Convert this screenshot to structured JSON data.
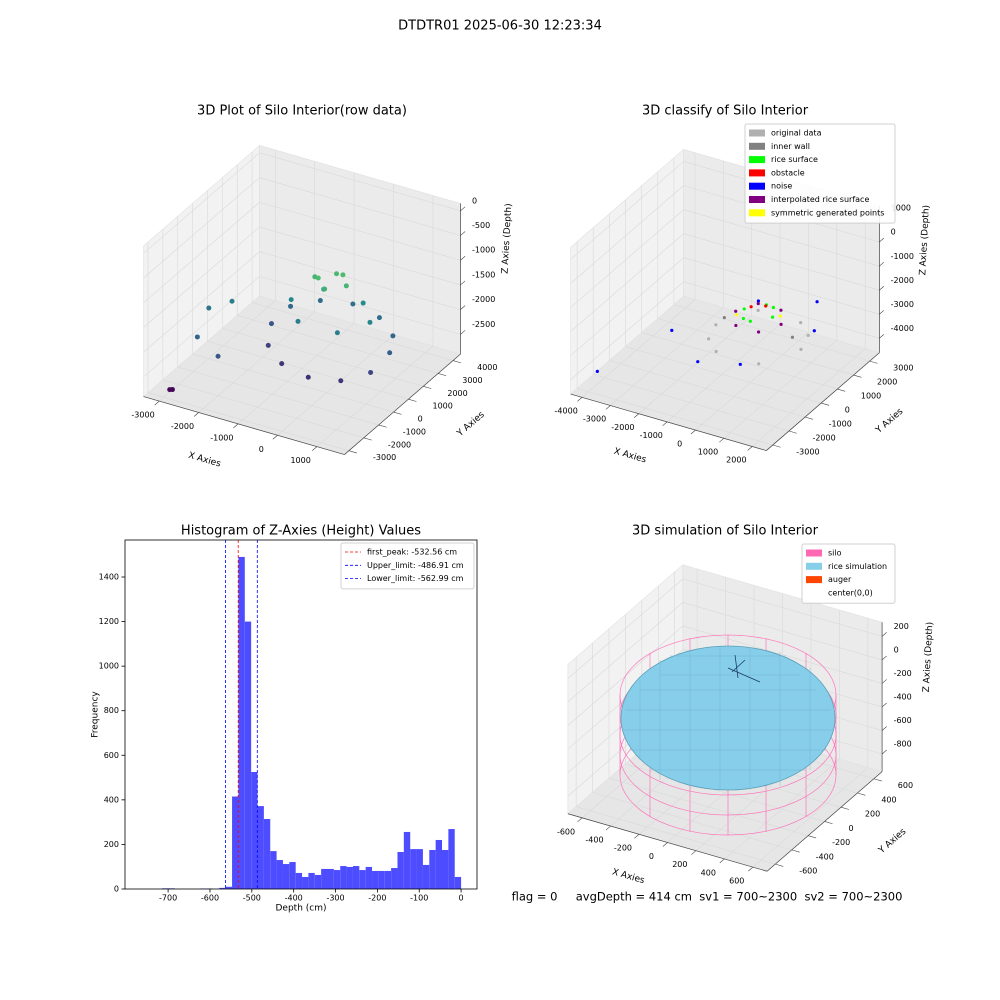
{
  "title": "DTDTR01 2025-06-30 12:23:34",
  "footer": "flag = 0     avgDepth = 414 cm  sv1 = 700~2300  sv2 = 700~2300",
  "chart_data": [
    {
      "type": "scatter3d",
      "title": "3D Plot of Silo Interior(row data)",
      "xlabel": "X Axies",
      "ylabel": "Y Axies",
      "zlabel": "Z Axies (Depth)",
      "xlim": [
        -3400,
        1700
      ],
      "ylim": [
        -3300,
        4500
      ],
      "zlim": [
        -2900,
        150
      ],
      "xticks": [
        -3000,
        -2000,
        -1000,
        0,
        1000
      ],
      "yticks": [
        -3000,
        -2000,
        -1000,
        0,
        1000,
        2000,
        3000,
        4000
      ],
      "zticks": [
        0,
        -500,
        -1000,
        -1500,
        -2000,
        -2500
      ],
      "colormap": "viridis",
      "grid": true,
      "series": [
        {
          "x": [
            -3000,
            -2950,
            -2800,
            -2600,
            -2000,
            -2400,
            1300,
            1099,
            550,
            -200,
            -950,
            -1499,
            -1700,
            -1499,
            -950,
            -200,
            550,
            1099,
            800,
            300,
            -700,
            -1200,
            -700,
            300,
            200,
            -200,
            -600,
            -200,
            0,
            -400
          ],
          "y": [
            -2600,
            -2550,
            -500,
            -1800,
            -2000,
            0,
            800,
            1550,
            2099,
            2300,
            2099,
            1550,
            800,
            50,
            -499,
            -700,
            -499,
            50,
            800,
            1666,
            1666,
            800,
            -66,
            -66,
            800,
            1200,
            800,
            400,
            1100,
            500
          ],
          "z": [
            -2850,
            -2850,
            -1700,
            -1900,
            -2100,
            -1600,
            -2000,
            -1900,
            -1800,
            -1750,
            -1800,
            -1900,
            -2100,
            -2300,
            -2400,
            -2450,
            -2400,
            -2250,
            -1500,
            -1450,
            -1400,
            -1500,
            -1600,
            -1600,
            -900,
            -850,
            -900,
            -950,
            -800,
            -800
          ]
        }
      ]
    },
    {
      "type": "scatter3d",
      "title": "3D classify of Silo Interior",
      "xlabel": "X Axies",
      "ylabel": "Y Axies",
      "zlabel": "Z Axies (Depth)",
      "xlim": [
        -4400,
        2500
      ],
      "ylim": [
        -3400,
        3600
      ],
      "zlim": [
        -4600,
        1500
      ],
      "xticks": [
        -4000,
        -3000,
        -2000,
        -1000,
        0,
        1000,
        2000
      ],
      "yticks": [
        -3000,
        -2000,
        -1000,
        0,
        1000,
        2000,
        3000
      ],
      "zticks": [
        1000,
        0,
        -1000,
        -2000,
        -3000,
        -4000
      ],
      "grid": true,
      "legend": "upper right",
      "series": [
        {
          "name": "original data",
          "color": "#b0b0b0",
          "x": [
            1500,
            750,
            -750,
            -1500,
            -750,
            750,
            1300,
            -1300
          ],
          "y": [
            500,
            1800,
            1800,
            500,
            -800,
            -800,
            1300,
            -300
          ],
          "z": [
            -3000,
            -2900,
            -2900,
            -3000,
            -3100,
            -3100,
            -2950,
            -3050
          ]
        },
        {
          "name": "inner wall",
          "color": "#808080",
          "x": [
            1200,
            -1200
          ],
          "y": [
            500,
            500
          ],
          "z": [
            -2600,
            -2600
          ]
        },
        {
          "name": "rice surface",
          "color": "#00ff00",
          "x": [
            500,
            0,
            -500,
            0,
            300,
            -300
          ],
          "y": [
            500,
            1000,
            500,
            0,
            900,
            100
          ],
          "z": [
            -2000,
            -1950,
            -2000,
            -2050,
            -1900,
            -2100
          ]
        },
        {
          "name": "obstacle",
          "color": "#ff0000",
          "x": [
            200,
            -200
          ],
          "y": [
            600,
            400
          ],
          "z": [
            -1700,
            -1750
          ]
        },
        {
          "name": "noise",
          "color": "#0000ff",
          "x": [
            -3800,
            -2200,
            1500,
            -1000,
            500,
            1800,
            0
          ],
          "y": [
            -2800,
            -1000,
            1500,
            -1500,
            -1500,
            800,
            500
          ],
          "z": [
            -3800,
            -2600,
            -1600,
            -3200,
            -2800,
            -2300,
            -1500
          ]
        },
        {
          "name": "interpolated rice surface",
          "color": "#800080",
          "x": [
            800,
            400,
            -400,
            -800,
            -400,
            400
          ],
          "y": [
            500,
            1193,
            1193,
            500,
            -193,
            -193
          ],
          "z": [
            -2200,
            -2150,
            -2150,
            -2200,
            -2250,
            -2250
          ]
        },
        {
          "name": "symmetric generated points",
          "color": "#ffff00",
          "x": [
            600,
            -600
          ],
          "y": [
            800,
            200
          ],
          "z": [
            -2100,
            -2100
          ]
        }
      ]
    },
    {
      "type": "histogram",
      "title": "Histogram of Z-Axies (Height) Values",
      "xlabel": "Depth (cm)",
      "ylabel": "Frequency",
      "color": "#4d4dff",
      "xlim": [
        -803,
        38
      ],
      "ylim": [
        0,
        1566
      ],
      "xticks": [
        -700,
        -600,
        -500,
        -400,
        -300,
        -200,
        -100,
        0
      ],
      "yticks": [
        0,
        200,
        400,
        600,
        800,
        1000,
        1200,
        1400
      ],
      "bins": [
        -760,
        -744.8,
        -729.6,
        -714.4,
        -699.2,
        -684,
        -668.8,
        -653.6,
        -638.4,
        -623.2,
        -608,
        -592.8,
        -577.6,
        -562.4,
        -547.2,
        -532,
        -516.8,
        -501.6,
        -486.4,
        -471.2,
        -456,
        -440.8,
        -425.6,
        -410.4,
        -395.2,
        -380,
        -364.8,
        -349.6,
        -334.4,
        -319.2,
        -304,
        -288.8,
        -273.6,
        -258.4,
        -243.2,
        -228,
        -212.8,
        -197.6,
        -182.4,
        -167.2,
        -152,
        -136.8,
        -121.6,
        -106.4,
        -91.2,
        -76,
        -60.8,
        -45.6,
        -30.4,
        -15.2,
        0
      ],
      "counts": [
        0,
        0,
        0,
        3,
        3,
        0,
        0,
        0,
        0,
        2,
        2,
        0,
        5,
        10,
        415,
        1490,
        1200,
        525,
        372,
        314,
        170,
        130,
        112,
        121,
        72,
        54,
        72,
        63,
        90,
        90,
        85,
        103,
        99,
        103,
        85,
        99,
        81,
        81,
        81,
        94,
        166,
        256,
        179,
        179,
        108,
        175,
        220,
        175,
        269,
        54
      ],
      "legend": "upper right",
      "lines": [
        {
          "label": "first_peak: -532.56 cm",
          "value": -532.56,
          "color": "#ff0000"
        },
        {
          "label": "Upper_limit: -486.91 cm",
          "value": -486.91,
          "color": "#0000ff"
        },
        {
          "label": "Lower_limit: -562.99 cm",
          "value": -562.99,
          "color": "#0000ff"
        }
      ]
    },
    {
      "type": "surface3d",
      "title": "3D simulation of Silo Interior",
      "xlabel": "X Axies",
      "ylabel": "Y Axies",
      "zlabel": "Z Axies (Depth)",
      "xlim": [
        -700,
        700
      ],
      "ylim": [
        -700,
        700
      ],
      "zlim": [
        -950,
        320
      ],
      "xticks": [
        -600,
        -400,
        -200,
        0,
        200,
        400,
        600
      ],
      "yticks": [
        -600,
        -400,
        -200,
        0,
        200,
        400,
        600
      ],
      "zticks": [
        200,
        0,
        -200,
        -400,
        -600,
        -800
      ],
      "grid": true,
      "legend": "upper right",
      "series": [
        {
          "name": "silo",
          "color": "#ff69b4"
        },
        {
          "name": "rice simulation",
          "color": "#87ceeb"
        },
        {
          "name": "auger",
          "color": "#ff4500"
        },
        {
          "name": "center(0,0)",
          "color": "#ffffff"
        }
      ]
    }
  ]
}
